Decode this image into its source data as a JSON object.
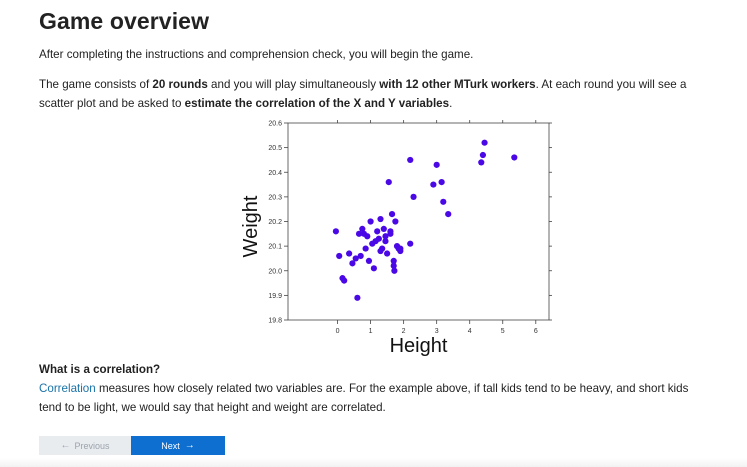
{
  "page": {
    "title": "Game overview",
    "intro": "After completing the instructions and comprehension check, you will begin the game.",
    "game_text": {
      "part1": "The game consists of ",
      "rounds": "20 rounds",
      "part2": " and you will play simultaneously ",
      "workers": "with 12 other MTurk workers",
      "part3": ". At each round you will see a scatter plot and be asked to ",
      "estimate": "estimate the correlation of the X and Y variables",
      "part4": "."
    },
    "correlation": {
      "heading": "What is a correlation?",
      "link_text": "Correlation",
      "text": " measures how closely related two variables are. For the example above, if tall kids tend to be heavy, and short kids tend to be light, we would say that height and weight are correlated."
    }
  },
  "nav": {
    "previous_label": "Previous",
    "next_label": "Next",
    "previous_arrow": "←",
    "next_arrow": "→"
  },
  "chart_data": {
    "type": "scatter",
    "xlabel": "Height",
    "ylabel": "Weight",
    "xlim": [
      -1.5,
      6.4
    ],
    "ylim": [
      19.8,
      20.6
    ],
    "xticks": [
      0,
      1,
      2,
      3,
      4,
      5,
      6
    ],
    "yticks": [
      "19.8",
      "19.9",
      "20.0",
      "20.1",
      "20.2",
      "20.3",
      "20.4",
      "20.5",
      "20.6"
    ],
    "point_color": "#4a08e6",
    "x": [
      -0.05,
      0.35,
      0.55,
      0.65,
      0.7,
      0.75,
      0.8,
      0.85,
      0.9,
      0.95,
      1.0,
      1.05,
      1.1,
      1.15,
      1.2,
      1.25,
      1.3,
      1.35,
      1.4,
      1.45,
      1.5,
      1.55,
      1.6,
      1.65,
      1.7,
      1.72,
      1.75,
      1.8,
      1.85,
      1.9,
      2.2,
      2.2,
      2.3,
      2.9,
      3.0,
      3.15,
      3.2,
      3.35,
      4.35,
      4.4,
      4.45,
      5.35,
      0.05,
      0.15,
      0.2,
      0.45,
      0.6,
      1.3,
      1.45,
      1.6,
      1.7,
      1.9
    ],
    "y": [
      20.16,
      20.07,
      20.05,
      20.15,
      20.06,
      20.17,
      20.15,
      20.09,
      20.14,
      20.04,
      20.2,
      20.11,
      20.01,
      20.12,
      20.16,
      20.13,
      20.21,
      20.09,
      20.17,
      20.12,
      20.07,
      20.36,
      20.15,
      20.23,
      20.04,
      20.0,
      20.2,
      20.1,
      20.09,
      20.09,
      20.11,
      20.45,
      20.3,
      20.35,
      20.43,
      20.36,
      20.28,
      20.23,
      20.44,
      20.47,
      20.52,
      20.46,
      20.06,
      19.97,
      19.96,
      20.03,
      19.89,
      20.08,
      20.14,
      20.16,
      20.02,
      20.08
    ]
  }
}
